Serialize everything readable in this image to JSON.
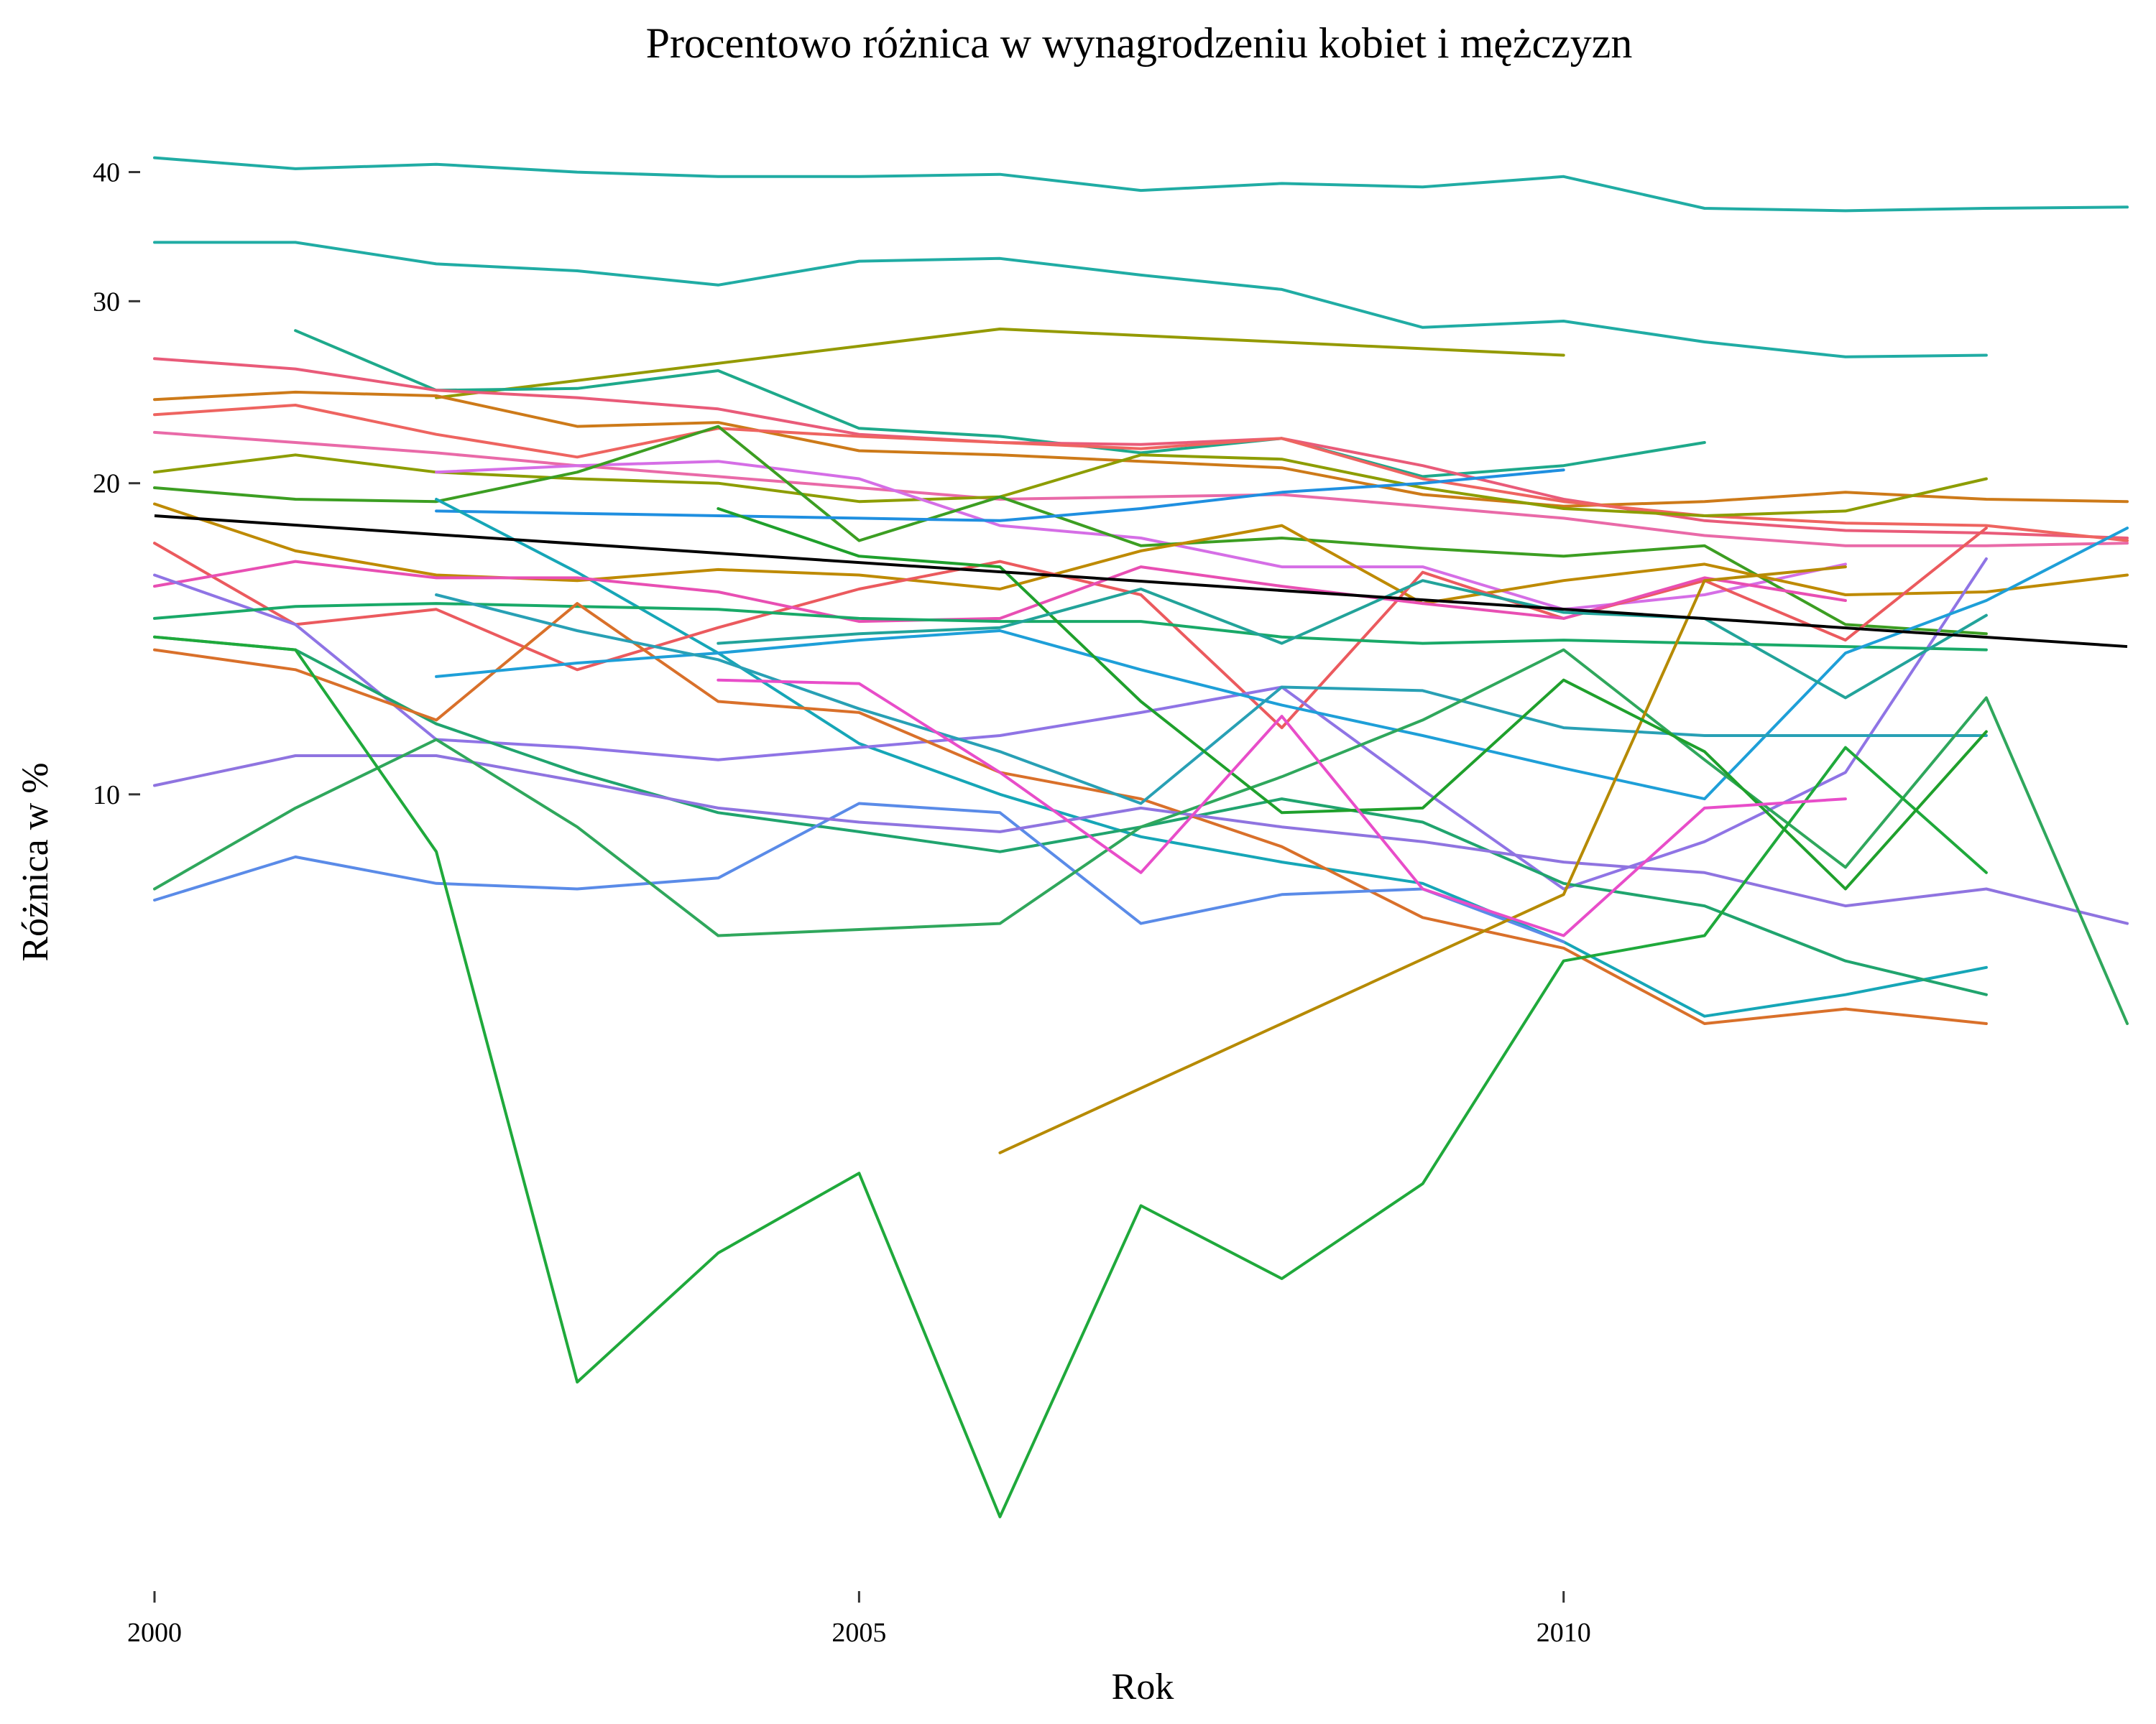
{
  "chart_data": {
    "type": "line",
    "title": "Procentowo różnica w wynagrodzeniu kobiet i mężczyzn",
    "xlabel": "Rok",
    "ylabel": "Różnica w %",
    "xlim": [
      2000,
      2014
    ],
    "y_scale": "log",
    "ylim": [
      1.75,
      44
    ],
    "x_ticks": [
      2000,
      2005,
      2010
    ],
    "y_ticks": [
      10,
      20,
      30,
      40
    ],
    "grid": false,
    "legend": "none",
    "trend": {
      "color": "#000000",
      "x": [
        2000,
        2014
      ],
      "y": [
        18.6,
        13.9
      ]
    },
    "series": [
      {
        "color": "#20ACA4",
        "x": [
          2000,
          2001,
          2002,
          2003,
          2004,
          2005,
          2006,
          2007,
          2008,
          2009,
          2010,
          2011,
          2012,
          2013,
          2014
        ],
        "y": [
          41.3,
          40.3,
          40.7,
          40.0,
          39.6,
          39.6,
          39.8,
          38.4,
          39.0,
          38.7,
          39.6,
          36.9,
          36.7,
          36.9,
          37.0
        ]
      },
      {
        "color": "#20ACA4",
        "x": [
          2000,
          2001,
          2002,
          2003,
          2004,
          2005,
          2006,
          2007,
          2008,
          2009,
          2010,
          2011,
          2012,
          2013
        ],
        "y": [
          34.2,
          34.2,
          32.6,
          32.1,
          31.1,
          32.8,
          33.0,
          31.8,
          30.8,
          28.3,
          28.7,
          27.4,
          26.5,
          26.6
        ]
      },
      {
        "color": "#949A00",
        "x": [
          2002,
          2006,
          2010
        ],
        "y": [
          24.2,
          28.2,
          26.6
        ]
      },
      {
        "color": "#1EA98B",
        "x": [
          2001,
          2002,
          2003,
          2004,
          2005,
          2006,
          2007,
          2008,
          2009,
          2010,
          2011
        ],
        "y": [
          28.1,
          24.6,
          24.7,
          25.7,
          22.6,
          22.2,
          21.4,
          22.1,
          20.3,
          20.8,
          21.9
        ]
      },
      {
        "color": "#E95B79",
        "x": [
          2000,
          2001,
          2002,
          2003,
          2004,
          2005,
          2006,
          2007,
          2008,
          2009,
          2010,
          2011,
          2012,
          2013,
          2014
        ],
        "y": [
          26.4,
          25.8,
          24.6,
          24.2,
          23.6,
          22.3,
          21.9,
          21.8,
          22.1,
          20.8,
          19.3,
          18.4,
          18.0,
          17.9,
          17.7
        ]
      },
      {
        "color": "#CD7A19",
        "x": [
          2000,
          2001,
          2002,
          2003,
          2004,
          2005,
          2006,
          2007,
          2008,
          2009,
          2010,
          2011,
          2012,
          2013,
          2014
        ],
        "y": [
          24.1,
          24.5,
          24.3,
          22.7,
          22.9,
          21.5,
          21.3,
          21.0,
          20.7,
          19.5,
          19.0,
          19.2,
          19.6,
          19.3,
          19.2
        ]
      },
      {
        "color": "#EE6460",
        "x": [
          2000,
          2001,
          2002,
          2003,
          2004,
          2005,
          2006,
          2007,
          2008,
          2009,
          2010,
          2011,
          2012,
          2013,
          2014
        ],
        "y": [
          23.3,
          23.8,
          22.3,
          21.2,
          22.6,
          22.2,
          21.9,
          21.6,
          22.1,
          20.2,
          19.2,
          18.6,
          18.3,
          18.2,
          17.6
        ]
      },
      {
        "color": "#E96AA8",
        "x": [
          2000,
          2001,
          2002,
          2003,
          2004,
          2005,
          2006,
          2007,
          2008,
          2009,
          2010,
          2011,
          2012,
          2013,
          2014
        ],
        "y": [
          22.4,
          21.9,
          21.4,
          20.8,
          20.3,
          19.8,
          19.3,
          19.4,
          19.5,
          19.0,
          18.5,
          17.8,
          17.4,
          17.4,
          17.5
        ]
      },
      {
        "color": "#8D9D00",
        "x": [
          2000,
          2001,
          2002,
          2003,
          2004,
          2005,
          2006,
          2007,
          2008,
          2009,
          2010,
          2011,
          2012,
          2013
        ],
        "y": [
          20.5,
          21.3,
          20.5,
          20.2,
          20.0,
          19.2,
          19.4,
          21.3,
          21.1,
          19.8,
          18.9,
          18.6,
          18.8,
          20.2
        ]
      },
      {
        "color": "#D56EE6",
        "x": [
          2002,
          2003,
          2004,
          2005,
          2006,
          2007,
          2008,
          2009,
          2010,
          2011,
          2012
        ],
        "y": [
          20.5,
          20.8,
          21.0,
          20.2,
          18.2,
          17.7,
          16.6,
          16.6,
          15.1,
          15.6,
          16.7
        ]
      },
      {
        "color": "#3C9E22",
        "x": [
          2000,
          2001,
          2002,
          2003,
          2004,
          2005,
          2006,
          2007,
          2008,
          2009,
          2010,
          2011,
          2012,
          2013
        ],
        "y": [
          19.8,
          19.3,
          19.2,
          20.5,
          22.7,
          17.6,
          19.4,
          17.4,
          17.7,
          17.3,
          17.0,
          17.4,
          14.6,
          14.3
        ]
      },
      {
        "color": "#1F8FE0",
        "x": [
          2002,
          2003,
          2004,
          2005,
          2006,
          2007,
          2008,
          2009,
          2010
        ],
        "y": [
          18.8,
          18.7,
          18.6,
          18.5,
          18.4,
          18.9,
          19.6,
          20.0,
          20.6
        ]
      },
      {
        "color": "#16A6B7",
        "x": [
          2002,
          2003,
          2004,
          2005,
          2006,
          2007,
          2008,
          2009,
          2010,
          2011,
          2012,
          2013
        ],
        "y": [
          19.3,
          16.4,
          13.7,
          11.2,
          10.0,
          9.1,
          8.6,
          8.2,
          7.2,
          6.1,
          6.4,
          6.8
        ]
      },
      {
        "color": "#BE8A00",
        "x": [
          2000,
          2001,
          2002,
          2003,
          2004,
          2005,
          2006,
          2007,
          2008,
          2009,
          2010,
          2011,
          2012,
          2013,
          2014
        ],
        "y": [
          19.1,
          17.2,
          16.3,
          16.1,
          16.5,
          16.3,
          15.8,
          17.2,
          18.2,
          15.3,
          16.1,
          16.7,
          15.6,
          15.7,
          16.3
        ]
      },
      {
        "color": "#EB5A5E",
        "x": [
          2000,
          2001,
          2002,
          2003,
          2004,
          2005,
          2006,
          2007,
          2008,
          2009,
          2010,
          2011,
          2012,
          2013
        ],
        "y": [
          17.5,
          14.6,
          15.1,
          13.2,
          14.5,
          15.8,
          16.8,
          15.6,
          11.6,
          16.4,
          14.8,
          16.1,
          14.1,
          18.1
        ]
      },
      {
        "color": "#E84FB3",
        "x": [
          2000,
          2001,
          2002,
          2003,
          2004,
          2005,
          2006,
          2007,
          2008,
          2009,
          2010,
          2011,
          2012
        ],
        "y": [
          15.9,
          16.8,
          16.2,
          16.2,
          15.7,
          14.7,
          14.8,
          16.6,
          15.9,
          15.3,
          14.8,
          16.2,
          15.4
        ]
      },
      {
        "color": "#8F74E5",
        "x": [
          2000,
          2001,
          2002,
          2003,
          2004,
          2005,
          2006,
          2007,
          2008,
          2009,
          2010,
          2011,
          2012,
          2013
        ],
        "y": [
          16.3,
          14.6,
          11.3,
          11.1,
          10.8,
          11.1,
          11.4,
          12.0,
          12.7,
          10.1,
          8.1,
          9.0,
          10.5,
          16.9
        ]
      },
      {
        "color": "#19A968",
        "x": [
          2000,
          2001,
          2002,
          2003,
          2004,
          2005,
          2006,
          2007,
          2008,
          2009,
          2010,
          2011,
          2012,
          2013
        ],
        "y": [
          14.8,
          15.2,
          15.3,
          15.2,
          15.1,
          14.8,
          14.7,
          14.7,
          14.2,
          14.0,
          14.1,
          14.0,
          13.9,
          13.8
        ]
      },
      {
        "color": "#20A46E",
        "x": [
          2000,
          2001,
          2002,
          2003,
          2004,
          2005,
          2006,
          2007,
          2008,
          2009,
          2010,
          2011,
          2012,
          2013
        ],
        "y": [
          14.2,
          13.8,
          11.7,
          10.5,
          9.6,
          9.2,
          8.8,
          9.3,
          9.9,
          9.4,
          8.2,
          7.8,
          6.9,
          6.4
        ]
      },
      {
        "color": "#D9702A",
        "x": [
          2000,
          2001,
          2002,
          2003,
          2004,
          2005,
          2006,
          2007,
          2008,
          2009,
          2010,
          2011,
          2012,
          2013
        ],
        "y": [
          13.8,
          13.2,
          11.8,
          15.3,
          12.3,
          12.0,
          10.5,
          9.9,
          8.9,
          7.6,
          7.1,
          6.0,
          6.2,
          6.0
        ]
      },
      {
        "color": "#1E9FD8",
        "x": [
          2002,
          2003,
          2004,
          2005,
          2006,
          2007,
          2008,
          2009,
          2010,
          2011,
          2012,
          2013,
          2014
        ],
        "y": [
          13.0,
          13.4,
          13.7,
          14.1,
          14.4,
          13.2,
          12.2,
          11.4,
          10.6,
          9.9,
          13.7,
          15.4,
          18.1
        ]
      },
      {
        "color": "#28A0B5",
        "x": [
          2002,
          2003,
          2004,
          2005,
          2006,
          2007,
          2008,
          2009,
          2010,
          2011,
          2012,
          2013
        ],
        "y": [
          15.6,
          14.4,
          13.5,
          12.1,
          11.0,
          9.8,
          12.7,
          12.6,
          11.6,
          11.4,
          11.4,
          11.4
        ]
      },
      {
        "color": "#5A8BE8",
        "x": [
          2000,
          2001,
          2002,
          2003,
          2004,
          2005,
          2006,
          2007,
          2008,
          2009,
          2010
        ],
        "y": [
          7.9,
          8.7,
          8.2,
          8.1,
          8.3,
          9.8,
          9.6,
          7.5,
          8.0,
          8.1,
          7.2
        ]
      },
      {
        "color": "#8F74E0",
        "x": [
          2000,
          2001,
          2002,
          2003,
          2004,
          2005,
          2006,
          2007,
          2008,
          2009,
          2010,
          2011,
          2012,
          2013,
          2014
        ],
        "y": [
          10.2,
          10.9,
          10.9,
          10.3,
          9.7,
          9.4,
          9.2,
          9.7,
          9.3,
          9.0,
          8.6,
          8.4,
          7.8,
          8.1,
          7.5
        ]
      },
      {
        "color": "#2FA75C",
        "x": [
          2000,
          2001,
          2002,
          2003,
          2004,
          2005,
          2006,
          2007,
          2008,
          2009,
          2010,
          2011,
          2012,
          2013,
          2014
        ],
        "y": [
          8.1,
          9.7,
          11.3,
          9.3,
          7.3,
          7.4,
          7.5,
          9.3,
          10.4,
          11.8,
          13.8,
          10.8,
          8.5,
          12.4,
          6.0
        ]
      },
      {
        "color": "#1FA93B",
        "x": [
          2000,
          2001,
          2002,
          2003,
          2004,
          2005,
          2006,
          2007,
          2008,
          2009,
          2010,
          2011,
          2012,
          2013
        ],
        "y": [
          14.2,
          13.8,
          8.8,
          2.7,
          3.6,
          4.3,
          2.0,
          4.0,
          3.4,
          4.2,
          6.9,
          7.3,
          11.1,
          8.4
        ]
      },
      {
        "color": "#B68A00",
        "x": [
          2006,
          2008,
          2010,
          2011,
          2012
        ],
        "y": [
          4.5,
          6.0,
          8.0,
          16.1,
          16.6
        ]
      },
      {
        "color": "#1FA02C",
        "x": [
          2004,
          2005,
          2006,
          2007,
          2008,
          2009,
          2010,
          2011,
          2012,
          2013
        ],
        "y": [
          18.9,
          17.0,
          16.6,
          12.3,
          9.6,
          9.7,
          12.9,
          11.0,
          8.1,
          11.5
        ]
      },
      {
        "color": "#22A39A",
        "x": [
          2004,
          2005,
          2006,
          2007,
          2008,
          2009,
          2010,
          2011,
          2012,
          2013
        ],
        "y": [
          14.0,
          14.3,
          14.5,
          15.8,
          14.0,
          16.1,
          15.0,
          14.8,
          12.4,
          14.9
        ]
      },
      {
        "color": "#E84DC9",
        "x": [
          2004,
          2005,
          2006,
          2007,
          2008,
          2009,
          2010,
          2011,
          2012
        ],
        "y": [
          12.9,
          12.8,
          10.5,
          8.4,
          11.9,
          8.1,
          7.3,
          9.7,
          9.9
        ]
      }
    ]
  }
}
